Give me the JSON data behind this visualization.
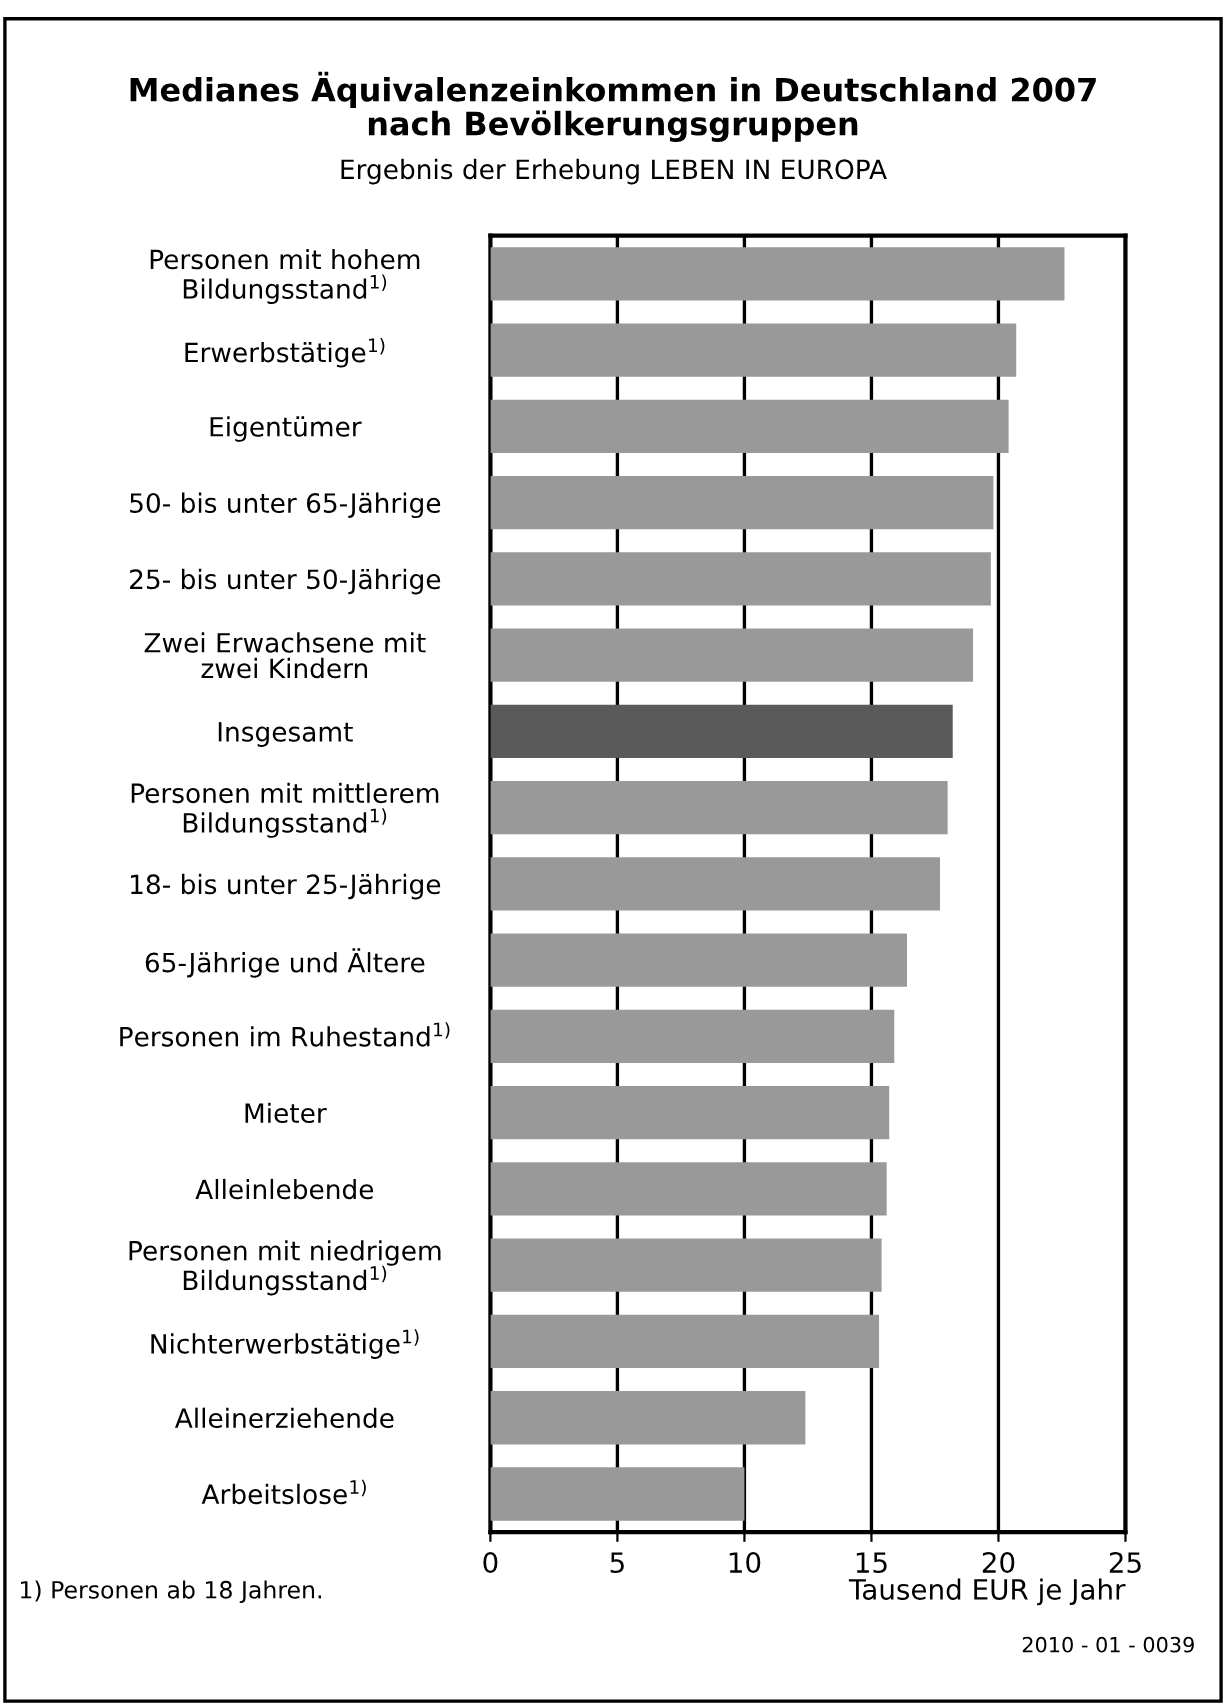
{
  "chart_data": {
    "type": "bar",
    "orientation": "horizontal",
    "title": "Medianes Äquivalenzeinkommen in Deutschland 2007\nnach Bevölkerungsgruppen",
    "subtitle": "Ergebnis der Erhebung LEBEN IN EUROPA",
    "xlabel": "Tausend EUR je Jahr",
    "categories": [
      "Personen mit hohem\nBildungsstand$^{1)}$",
      "Erwerbstätige$^{1)}$",
      "Eigentümer",
      "50- bis unter 65-Jährige",
      "25- bis unter 50-Jährige",
      "Zwei Erwachsene mit\nzwei Kindern",
      "Insgesamt",
      "Personen mit mittlerem\nBildungsstand$^{1)}$",
      "18- bis unter 25-Jährige",
      "65-Jährige und Ältere",
      "Personen im Ruhestand$^{1)}$",
      "Mieter",
      "Alleinlebende",
      "Personen mit niedrigem\nBildungsstand$^{1)}$",
      "Nichterwerbstätige$^{1)}$",
      "Alleinerziehende",
      "Arbeitslose$^{1)}$"
    ],
    "values": [
      22.6,
      20.7,
      20.4,
      19.8,
      19.7,
      19.0,
      18.2,
      18.0,
      17.7,
      16.4,
      15.9,
      15.7,
      15.6,
      15.4,
      15.3,
      12.4,
      10.0
    ],
    "colors": [
      "#999999",
      "#999999",
      "#999999",
      "#999999",
      "#999999",
      "#999999",
      "#5a5a5a",
      "#999999",
      "#999999",
      "#999999",
      "#999999",
      "#999999",
      "#999999",
      "#999999",
      "#999999",
      "#999999",
      "#999999"
    ],
    "xlim": [
      0,
      25
    ],
    "xticks": [
      0,
      5,
      10,
      15,
      20,
      25
    ],
    "grid": "x",
    "annotations": [
      "1) Personen ab 18 Jahren.",
      "2010 - 01 - 0039"
    ]
  }
}
